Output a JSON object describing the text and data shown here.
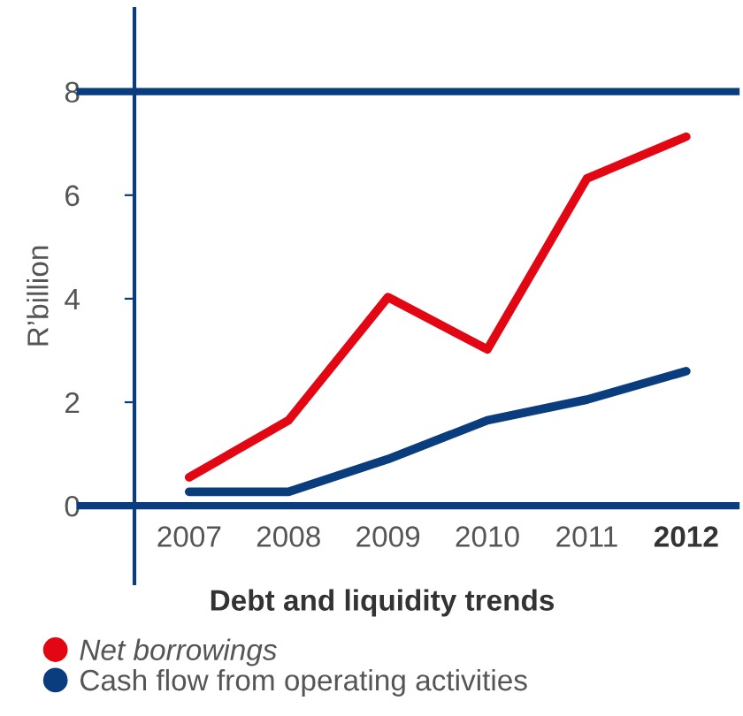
{
  "chart_data": {
    "type": "line",
    "title": "Debt and liquidity trends",
    "ylabel": "R’billion",
    "categories": [
      "2007",
      "2008",
      "2009",
      "2010",
      "2011",
      "2012"
    ],
    "series": [
      {
        "name": "Net borrowings",
        "color": "#e30613",
        "values": [
          0.55,
          1.65,
          4.03,
          3.02,
          6.32,
          7.13
        ]
      },
      {
        "name": "Cash flow from operating activities",
        "color": "#0a3d7e",
        "values": [
          0.27,
          0.27,
          0.9,
          1.65,
          2.05,
          2.6
        ]
      }
    ],
    "ylim": [
      -1.5,
      9.6
    ],
    "yticks": [
      0,
      2,
      4,
      6,
      8
    ],
    "ref_lines": [
      {
        "axis": "y",
        "value": 8,
        "color": "#0a3d7e"
      },
      {
        "axis": "y",
        "value": 0,
        "color": "#0a3d7e"
      }
    ],
    "grid": false,
    "legend": "bottom",
    "marker": "none",
    "line_style": "solid"
  }
}
